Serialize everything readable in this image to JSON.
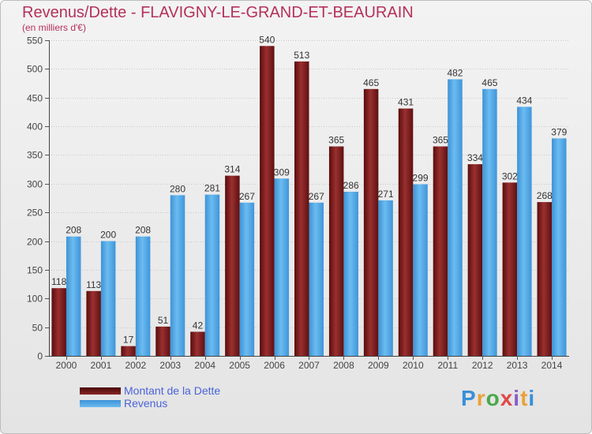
{
  "title": "Revenus/Dette - FLAVIGNY-LE-GRAND-ET-BEAURAIN",
  "subtitle": "(en milliers d'€)",
  "logo_text": "Proxiti",
  "colors": {
    "title": "#b5305a",
    "debt": "#7a1a1a",
    "revenue": "#4ea5e6",
    "legend_text": "#4a63d8"
  },
  "chart_data": {
    "type": "bar",
    "title": "Revenus/Dette - FLAVIGNY-LE-GRAND-ET-BEAURAIN",
    "ylabel": "(en milliers d'€)",
    "xlabel": "",
    "ylim": [
      0,
      550
    ],
    "yticks": [
      0,
      50,
      100,
      150,
      200,
      250,
      300,
      350,
      400,
      450,
      500,
      550
    ],
    "grid": true,
    "legend_position": "bottom-left",
    "categories": [
      "2000",
      "2001",
      "2002",
      "2003",
      "2004",
      "2005",
      "2006",
      "2007",
      "2008",
      "2009",
      "2010",
      "2011",
      "2012",
      "2013",
      "2014"
    ],
    "series": [
      {
        "name": "Montant de la Dette",
        "values": [
          118,
          113,
          17,
          51,
          42,
          314,
          540,
          513,
          365,
          465,
          431,
          365,
          334,
          302,
          268
        ]
      },
      {
        "name": "Revenus",
        "values": [
          208,
          200,
          208,
          280,
          281,
          267,
          309,
          267,
          286,
          271,
          299,
          482,
          465,
          434,
          379
        ]
      }
    ]
  }
}
